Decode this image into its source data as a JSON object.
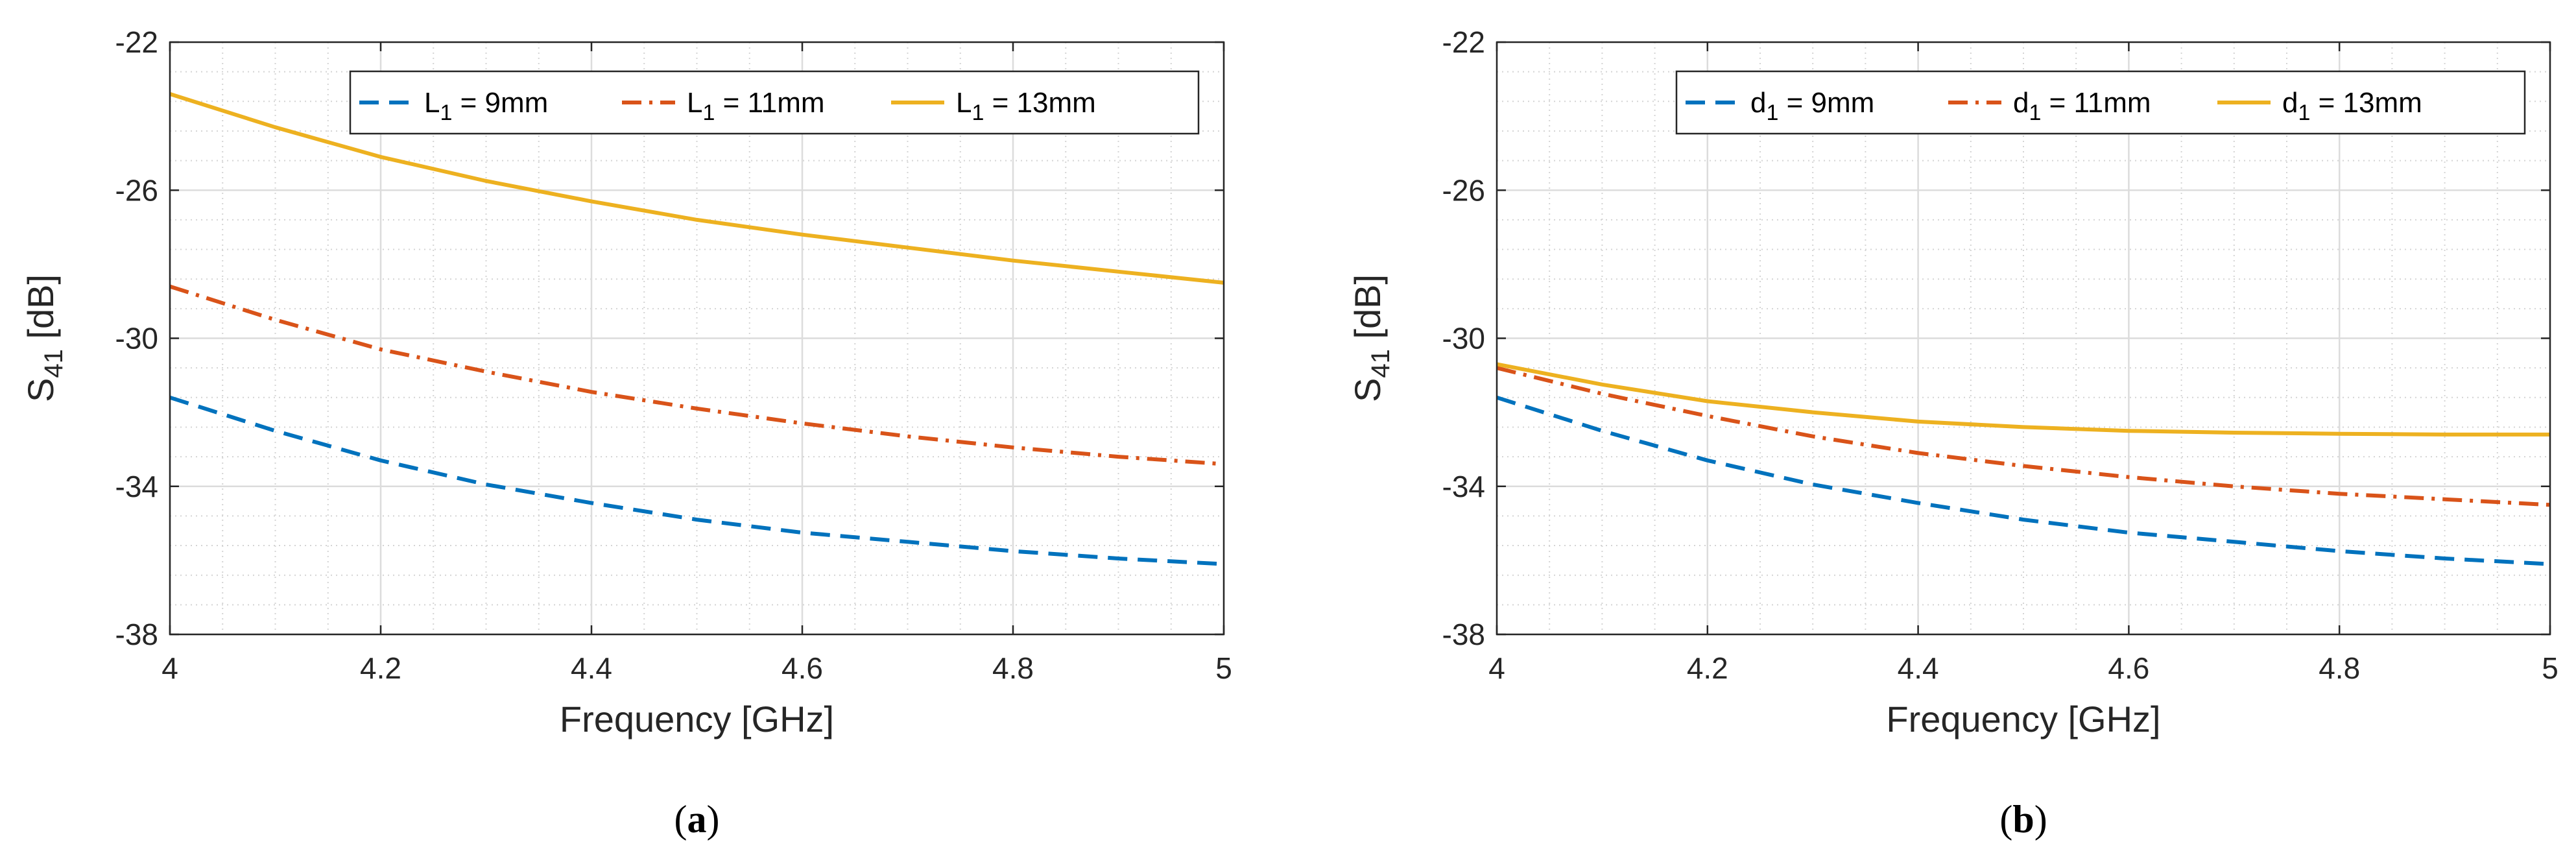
{
  "chart_data": [
    {
      "type": "line",
      "caption": {
        "open": "(",
        "letter": "a",
        "close": ")"
      },
      "xlabel": "Frequency [GHz]",
      "ylabel": {
        "main": "S",
        "sub": "41",
        "unit": " [dB]"
      },
      "xlim": [
        4,
        5
      ],
      "ylim": [
        -38,
        -22
      ],
      "xticks": [
        4,
        4.2,
        4.4,
        4.6,
        4.8,
        5
      ],
      "yticks": [
        -38,
        -34,
        -30,
        -26,
        -22
      ],
      "xtick_labels": [
        "4",
        "4.2",
        "4.4",
        "4.6",
        "4.8",
        "5"
      ],
      "ytick_labels": [
        "-38",
        "-34",
        "-30",
        "-26",
        "-22"
      ],
      "grid": true,
      "legend_position": "top",
      "x": [
        4.0,
        4.1,
        4.2,
        4.3,
        4.4,
        4.5,
        4.6,
        4.7,
        4.8,
        4.9,
        5.0
      ],
      "series": [
        {
          "name": "L1 = 9mm",
          "legend": {
            "var": "L",
            "sub": "1",
            "rest": " = 9mm"
          },
          "color": "#0072BD",
          "style": "dashed",
          "values": [
            -31.6,
            -32.5,
            -33.3,
            -33.95,
            -34.45,
            -34.9,
            -35.25,
            -35.5,
            -35.75,
            -35.95,
            -36.1
          ]
        },
        {
          "name": "L1 = 11mm",
          "legend": {
            "var": "L",
            "sub": "1",
            "rest": " = 11mm"
          },
          "color": "#D95319",
          "style": "dashdot",
          "values": [
            -28.6,
            -29.5,
            -30.3,
            -30.9,
            -31.45,
            -31.9,
            -32.3,
            -32.65,
            -32.95,
            -33.2,
            -33.4
          ]
        },
        {
          "name": "L1 = 13mm",
          "legend": {
            "var": "L",
            "sub": "1",
            "rest": " = 13mm"
          },
          "color": "#EDB120",
          "style": "solid",
          "values": [
            -23.4,
            -24.3,
            -25.1,
            -25.75,
            -26.3,
            -26.8,
            -27.2,
            -27.55,
            -27.9,
            -28.2,
            -28.5
          ]
        }
      ]
    },
    {
      "type": "line",
      "caption": {
        "open": "(",
        "letter": "b",
        "close": ")"
      },
      "xlabel": "Frequency [GHz]",
      "ylabel": {
        "main": "S",
        "sub": "41",
        "unit": " [dB]"
      },
      "xlim": [
        4,
        5
      ],
      "ylim": [
        -38,
        -22
      ],
      "xticks": [
        4,
        4.2,
        4.4,
        4.6,
        4.8,
        5
      ],
      "yticks": [
        -38,
        -34,
        -30,
        -26,
        -22
      ],
      "xtick_labels": [
        "4",
        "4.2",
        "4.4",
        "4.6",
        "4.8",
        "5"
      ],
      "ytick_labels": [
        "-38",
        "-34",
        "-30",
        "-26",
        "-22"
      ],
      "grid": true,
      "legend_position": "top",
      "x": [
        4.0,
        4.1,
        4.2,
        4.3,
        4.4,
        4.5,
        4.6,
        4.7,
        4.8,
        4.9,
        5.0
      ],
      "series": [
        {
          "name": "d1 = 9mm",
          "legend": {
            "var": "d",
            "sub": "1",
            "rest": " = 9mm"
          },
          "color": "#0072BD",
          "style": "dashed",
          "values": [
            -31.6,
            -32.5,
            -33.3,
            -33.95,
            -34.45,
            -34.9,
            -35.25,
            -35.5,
            -35.75,
            -35.95,
            -36.1
          ]
        },
        {
          "name": "d1 = 11mm",
          "legend": {
            "var": "d",
            "sub": "1",
            "rest": " = 11mm"
          },
          "color": "#D95319",
          "style": "dashdot",
          "values": [
            -30.8,
            -31.5,
            -32.1,
            -32.65,
            -33.1,
            -33.45,
            -33.75,
            -34.0,
            -34.2,
            -34.35,
            -34.5
          ]
        },
        {
          "name": "d1 = 13mm",
          "legend": {
            "var": "d",
            "sub": "1",
            "rest": " = 13mm"
          },
          "color": "#EDB120",
          "style": "solid",
          "values": [
            -30.7,
            -31.25,
            -31.7,
            -32.0,
            -32.25,
            -32.4,
            -32.5,
            -32.55,
            -32.58,
            -32.6,
            -32.6
          ]
        }
      ]
    }
  ]
}
